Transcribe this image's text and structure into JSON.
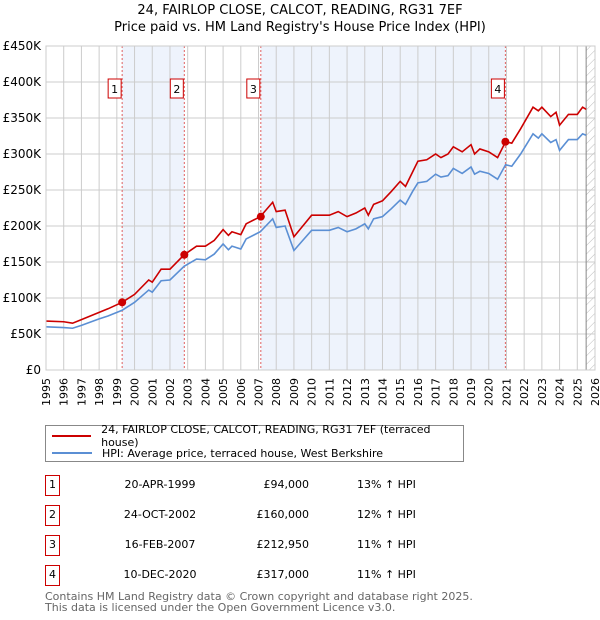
{
  "title": "24, FAIRLOP CLOSE, CALCOT, READING, RG31 7EF",
  "subtitle": "Price paid vs. HM Land Registry's House Price Index (HPI)",
  "colors": {
    "property": "#cc0000",
    "hpi": "#5b8fd4",
    "shade": "#eef3fc",
    "grid": "#cccccc"
  },
  "chart_data": {
    "type": "line",
    "xlim": [
      1995,
      2026
    ],
    "ylim": [
      0,
      450000
    ],
    "y_ticks": [
      0,
      50000,
      100000,
      150000,
      200000,
      250000,
      300000,
      350000,
      400000,
      450000
    ],
    "y_tick_labels": [
      "£0",
      "£50K",
      "£100K",
      "£150K",
      "£200K",
      "£250K",
      "£300K",
      "£350K",
      "£400K",
      "£450K"
    ],
    "x_ticks": [
      "1995",
      "1996",
      "1997",
      "1998",
      "1999",
      "2000",
      "2001",
      "2002",
      "2003",
      "2004",
      "2005",
      "2006",
      "2007",
      "2008",
      "2009",
      "2010",
      "2011",
      "2012",
      "2013",
      "2014",
      "2015",
      "2016",
      "2017",
      "2018",
      "2019",
      "2020",
      "2021",
      "2022",
      "2023",
      "2024",
      "2025",
      "2026"
    ],
    "grid": true,
    "legend_placement": "below",
    "series": [
      {
        "name": "24, FAIRLOP CLOSE, CALCOT, READING, RG31 7EF (terraced house)",
        "x": [
          1995,
          1996,
          1996.5,
          1997,
          1998,
          1998.5,
          1999.3,
          2000,
          2000.8,
          2001,
          2001.5,
          2002,
          2002.8,
          2003.5,
          2004,
          2004.5,
          2005,
          2005.3,
          2005.5,
          2006,
          2006.3,
          2007.1,
          2007.8,
          2008,
          2008.5,
          2009,
          2009.5,
          2010,
          2010.5,
          2011,
          2011.5,
          2012,
          2012.5,
          2013,
          2013.2,
          2013.5,
          2014,
          2014.5,
          2015,
          2015.3,
          2015.7,
          2016,
          2016.5,
          2017,
          2017.3,
          2017.7,
          2018,
          2018.5,
          2019,
          2019.2,
          2019.5,
          2020,
          2020.5,
          2020.95,
          2021.3,
          2021.8,
          2022.5,
          2022.8,
          2023,
          2023.5,
          2023.8,
          2024,
          2024.5,
          2025,
          2025.3,
          2025.5
        ],
        "values": [
          68000,
          67000,
          65000,
          70000,
          80000,
          85000,
          94000,
          105000,
          125000,
          122000,
          140000,
          140000,
          160000,
          172000,
          172000,
          180000,
          195000,
          187000,
          192000,
          188000,
          203000,
          213000,
          233000,
          220000,
          222000,
          185000,
          200000,
          215000,
          215000,
          215000,
          220000,
          213000,
          218000,
          225000,
          215000,
          230000,
          235000,
          248000,
          262000,
          255000,
          275000,
          290000,
          292000,
          300000,
          295000,
          300000,
          310000,
          303000,
          313000,
          300000,
          307000,
          303000,
          295000,
          317000,
          315000,
          335000,
          365000,
          360000,
          365000,
          352000,
          358000,
          340000,
          355000,
          355000,
          365000,
          362000
        ]
      },
      {
        "name": "HPI: Average price, terraced house, West Berkshire",
        "x": [
          1995,
          1996,
          1996.5,
          1997,
          1998,
          1998.5,
          1999.3,
          2000,
          2000.8,
          2001,
          2001.5,
          2002,
          2002.8,
          2003.5,
          2004,
          2004.5,
          2005,
          2005.3,
          2005.5,
          2006,
          2006.3,
          2007.1,
          2007.8,
          2008,
          2008.5,
          2009,
          2009.5,
          2010,
          2010.5,
          2011,
          2011.5,
          2012,
          2012.5,
          2013,
          2013.2,
          2013.5,
          2014,
          2014.5,
          2015,
          2015.3,
          2015.7,
          2016,
          2016.5,
          2017,
          2017.3,
          2017.7,
          2018,
          2018.5,
          2019,
          2019.2,
          2019.5,
          2020,
          2020.5,
          2020.95,
          2021.3,
          2021.8,
          2022.5,
          2022.8,
          2023,
          2023.5,
          2023.8,
          2024,
          2024.5,
          2025,
          2025.3,
          2025.5
        ],
        "values": [
          60000,
          59000,
          58000,
          62000,
          71000,
          75000,
          83000,
          94000,
          111000,
          108000,
          124000,
          125000,
          144000,
          154000,
          153000,
          161000,
          175000,
          167000,
          172000,
          168000,
          182000,
          192000,
          210000,
          198000,
          200000,
          166000,
          180000,
          194000,
          194000,
          194000,
          198000,
          192000,
          196000,
          203000,
          196000,
          210000,
          213000,
          224000,
          236000,
          230000,
          248000,
          260000,
          262000,
          272000,
          268000,
          270000,
          280000,
          273000,
          282000,
          272000,
          276000,
          273000,
          265000,
          285000,
          283000,
          300000,
          328000,
          322000,
          328000,
          316000,
          320000,
          305000,
          320000,
          320000,
          328000,
          326000
        ]
      }
    ],
    "sales": [
      {
        "label": "1",
        "x": 1999.3,
        "value": 94000
      },
      {
        "label": "2",
        "x": 2002.81,
        "value": 160000
      },
      {
        "label": "3",
        "x": 2007.13,
        "value": 212950
      },
      {
        "label": "4",
        "x": 2020.94,
        "value": 317000
      }
    ],
    "shaded_ranges": [
      [
        1999.3,
        2002.81
      ],
      [
        2007.13,
        2020.94
      ]
    ],
    "hatched_from": 2025.5
  },
  "legend": {
    "property": "24, FAIRLOP CLOSE, CALCOT, READING, RG31 7EF (terraced house)",
    "hpi": "HPI: Average price, terraced house, West Berkshire"
  },
  "transactions": [
    {
      "num": "1",
      "date": "20-APR-1999",
      "price": "£94,000",
      "hpi": "13% ↑ HPI"
    },
    {
      "num": "2",
      "date": "24-OCT-2002",
      "price": "£160,000",
      "hpi": "12% ↑ HPI"
    },
    {
      "num": "3",
      "date": "16-FEB-2007",
      "price": "£212,950",
      "hpi": "11% ↑ HPI"
    },
    {
      "num": "4",
      "date": "10-DEC-2020",
      "price": "£317,000",
      "hpi": "11% ↑ HPI"
    }
  ],
  "footer": {
    "line1": "Contains HM Land Registry data © Crown copyright and database right 2025.",
    "line2": "This data is licensed under the Open Government Licence v3.0."
  }
}
